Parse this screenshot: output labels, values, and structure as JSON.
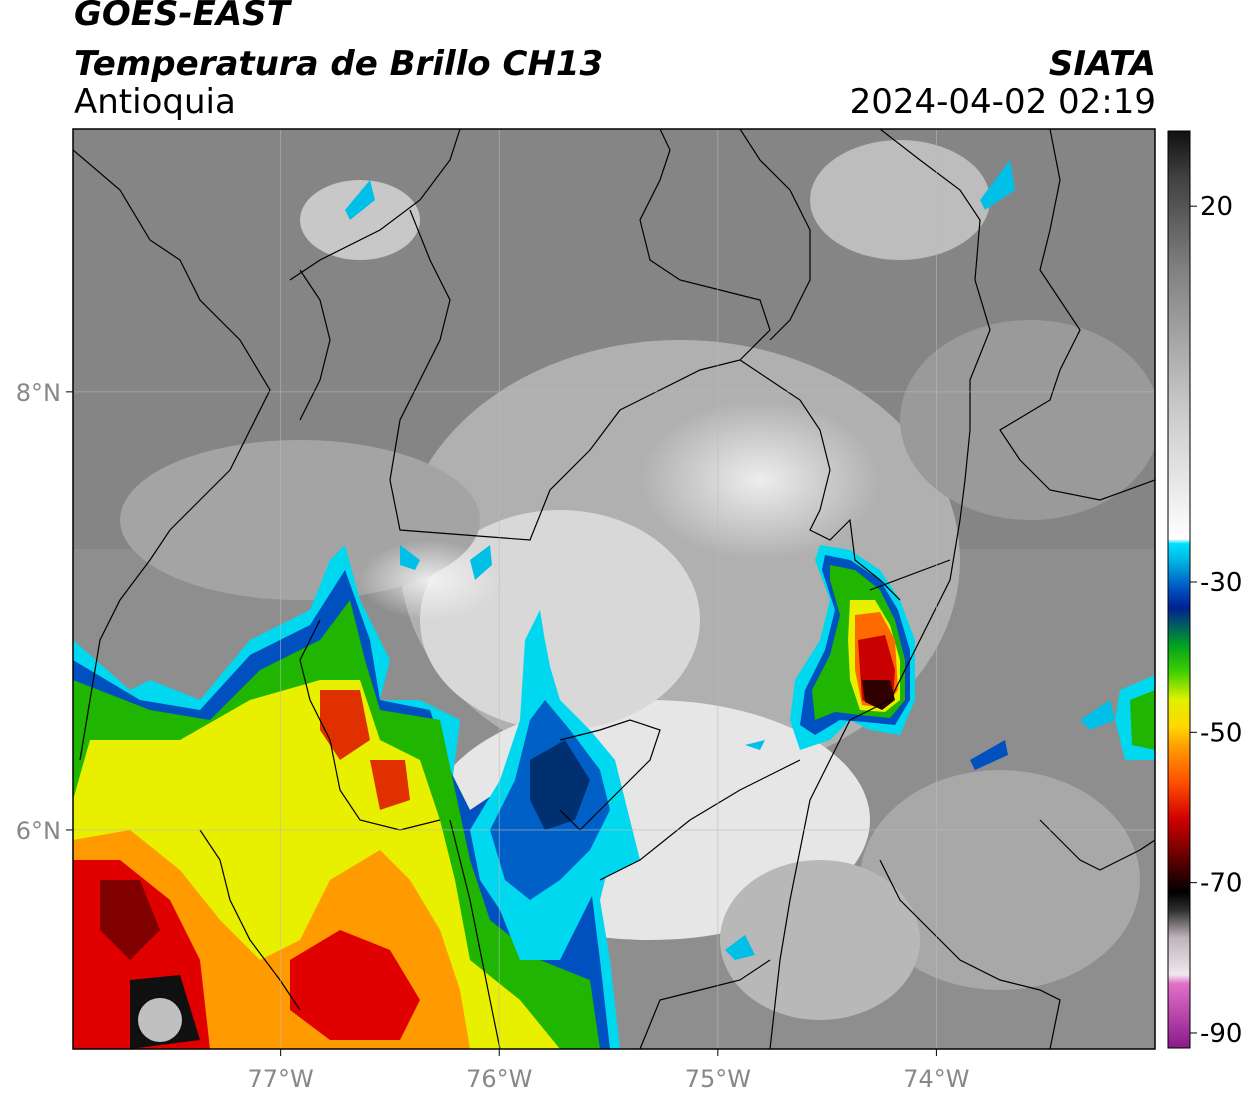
{
  "header": {
    "satellite": "GOES-EAST",
    "product": "Temperatura de Brillo CH13",
    "region": "Antioquia",
    "agency": "SIATA",
    "datetime": "2024-04-02 02:19"
  },
  "map": {
    "lon_ticks": [
      {
        "value": -77,
        "label": "77°W"
      },
      {
        "value": -76,
        "label": "76°W"
      },
      {
        "value": -75,
        "label": "75°W"
      },
      {
        "value": -74,
        "label": "74°W"
      }
    ],
    "lat_ticks": [
      {
        "value": 8,
        "label": "8°N"
      },
      {
        "value": 6,
        "label": "6°N"
      }
    ],
    "lon_range": [
      -77.95,
      -73.0
    ],
    "lat_range": [
      5.0,
      9.2
    ],
    "grid": true
  },
  "colorbar": {
    "ticks": [
      {
        "value": 20,
        "label": "20"
      },
      {
        "value": -30,
        "label": "-30"
      },
      {
        "value": -50,
        "label": "-50"
      },
      {
        "value": -70,
        "label": "-70"
      },
      {
        "value": -90,
        "label": "-90"
      }
    ],
    "range": [
      -92,
      30
    ]
  },
  "colors": {
    "cold_red": "#c80000",
    "cold_orange": "#ff8000",
    "yellow": "#f5f000",
    "green": "#1fb500",
    "blue": "#0050c0",
    "cyan": "#00d6f0",
    "magenta": "#c040c0"
  }
}
